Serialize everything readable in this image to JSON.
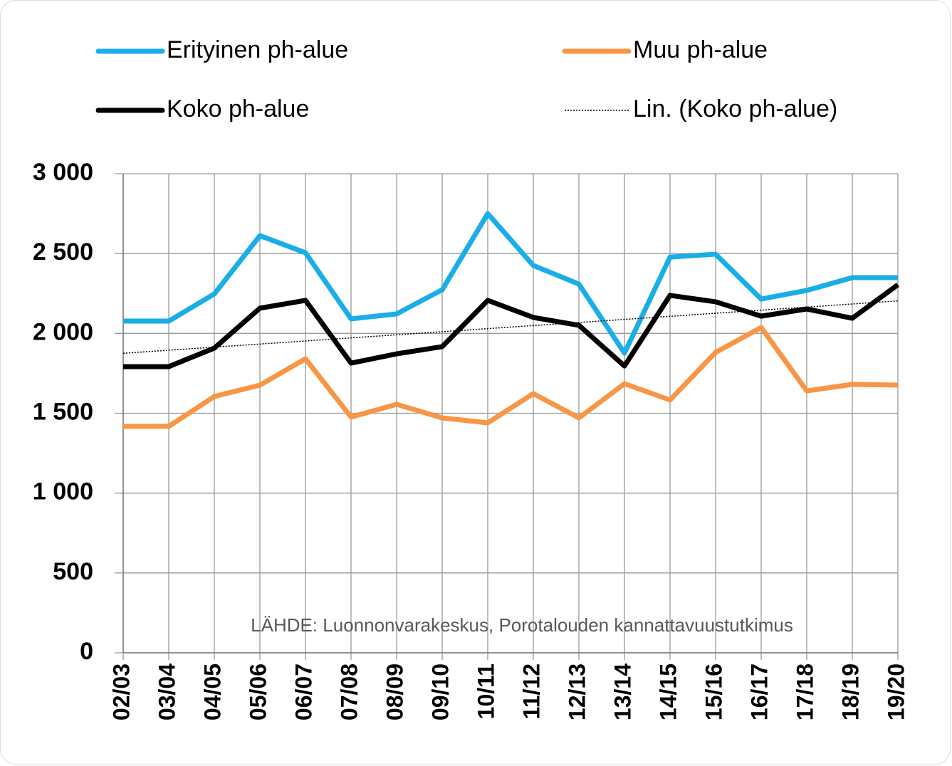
{
  "chart_data": {
    "type": "line",
    "categories": [
      "02/03",
      "03/04",
      "04/05",
      "05/06",
      "06/07",
      "07/08",
      "08/09",
      "09/10",
      "10/11",
      "11/12",
      "12/13",
      "13/14",
      "14/15",
      "15/16",
      "16/17",
      "17/18",
      "18/19",
      "19/20"
    ],
    "series": [
      {
        "name": "Erityinen ph-alue",
        "color": "#1aaee8",
        "values": [
          2077,
          2077,
          2247,
          2612,
          2505,
          2091,
          2122,
          2273,
          2750,
          2425,
          2309,
          1877,
          2478,
          2496,
          2215,
          2269,
          2349,
          2349
        ]
      },
      {
        "name": "Muu ph-alue",
        "color": "#f79646",
        "values": [
          1418,
          1418,
          1605,
          1676,
          1841,
          1476,
          1556,
          1471,
          1440,
          1623,
          1471,
          1685,
          1583,
          1881,
          2037,
          1640,
          1681,
          1676
        ]
      },
      {
        "name": "Koko ph-alue",
        "color": "#000000",
        "values": [
          1792,
          1792,
          1908,
          2158,
          2207,
          1814,
          1872,
          1917,
          2207,
          2100,
          2051,
          1796,
          2238,
          2198,
          2108,
          2153,
          2095,
          2305
        ]
      }
    ],
    "trendline": {
      "name": "Lin. (Koko ph-alue)",
      "series": 2,
      "color": "#000000"
    },
    "ylim": [
      0,
      3000
    ],
    "yticks": [
      0,
      500,
      {
        "value": 1000,
        "label": "1 000"
      },
      {
        "value": 1500,
        "label": "1 500"
      },
      {
        "value": 2000,
        "label": "2 000"
      },
      {
        "value": 2500,
        "label": "2 500"
      },
      {
        "value": 3000,
        "label": "3 000"
      }
    ],
    "grid": true,
    "note": "LÄHDE: Luonnonvarakeskus, Porotalouden kannattavuustutkimus"
  }
}
